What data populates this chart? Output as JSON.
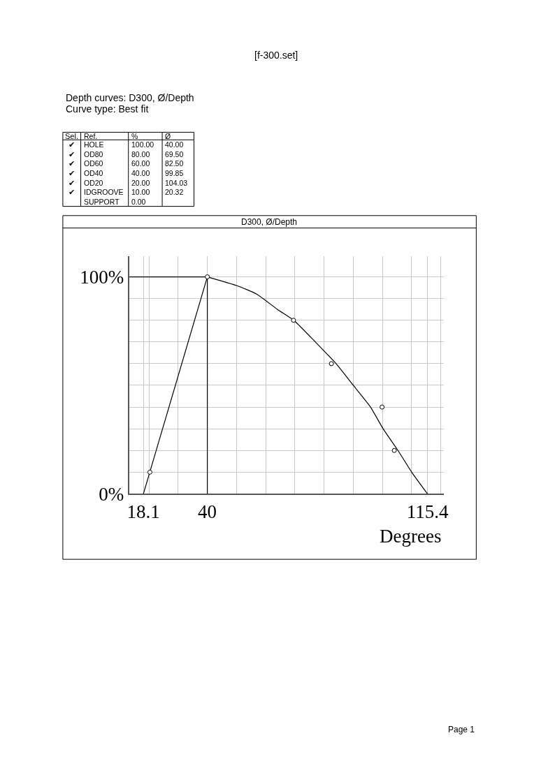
{
  "chart_data": {
    "type": "scatter",
    "title": "D300, Ø/Depth",
    "subtitle": "[f-300.set]",
    "xlabel": "Degrees",
    "annotations": [
      "Depth curves: D300, Ø/Depth",
      "Curve type: Best fit",
      "Sel.\tRef.\t%\tØ",
      "✔\tHOLE\t100.00\t40.00",
      "✔\tOD80\t80.00\t69.50",
      "✔\tOD60\t60.00\t82.50",
      "✔\tOD40\t40.00\t99.85",
      "✔\tOD20\t20.00\t104.03",
      "✔\tIDGROOVE\t10.00\t20.32",
      "\tSUPPORT\t0.00\t",
      "Page 1"
    ],
    "series": [
      {
        "type": "line",
        "color": "#000000",
        "marker": "none",
        "x": [
          40,
          50,
          57,
          64,
          69.6,
          77,
          84.1,
          90,
          95.9,
          100.2,
          105.3,
          110,
          115.4
        ],
        "values": [
          100,
          96,
          92,
          85,
          80,
          70,
          60,
          50,
          40,
          30,
          20,
          10,
          0
        ]
      },
      {
        "type": "line",
        "color": "#000000",
        "marker": "none",
        "x": [
          18.1,
          40,
          40
        ],
        "values": [
          0,
          100,
          0
        ]
      },
      {
        "type": "line",
        "color": "#000000",
        "marker": "none",
        "x": [
          13.2,
          40
        ],
        "values": [
          100,
          100
        ]
      },
      {
        "color": "#000000",
        "marker": "circle",
        "x": [
          40,
          69.5,
          82.5,
          99.85,
          104.03,
          20.32
        ],
        "values": [
          100,
          80,
          60,
          40,
          20,
          10
        ]
      }
    ],
    "xlim": [
      13.2,
      121
    ],
    "ylim": [
      0,
      109.5
    ],
    "xticks": [
      18.1,
      40,
      115.4,
      {
        "value": 20,
        "label": null
      },
      {
        "value": 30,
        "label": null
      },
      {
        "value": 50,
        "label": null
      },
      {
        "value": 60,
        "label": null
      },
      {
        "value": 70,
        "label": null
      },
      {
        "value": 80,
        "label": null
      },
      {
        "value": 90,
        "label": null
      },
      {
        "value": 100,
        "label": null
      },
      {
        "value": 110,
        "label": null
      },
      {
        "value": 120,
        "label": null
      }
    ],
    "yticks": [
      {
        "value": 0,
        "label": "0%"
      },
      {
        "value": 100,
        "label": "100%"
      },
      {
        "value": 10,
        "label": null
      },
      {
        "value": 20,
        "label": null
      },
      {
        "value": 30,
        "label": null
      },
      {
        "value": 40,
        "label": null
      },
      {
        "value": 50,
        "label": null
      },
      {
        "value": 60,
        "label": null
      },
      {
        "value": 70,
        "label": null
      },
      {
        "value": 80,
        "label": null
      },
      {
        "value": 90,
        "label": null
      }
    ],
    "grid": true
  }
}
